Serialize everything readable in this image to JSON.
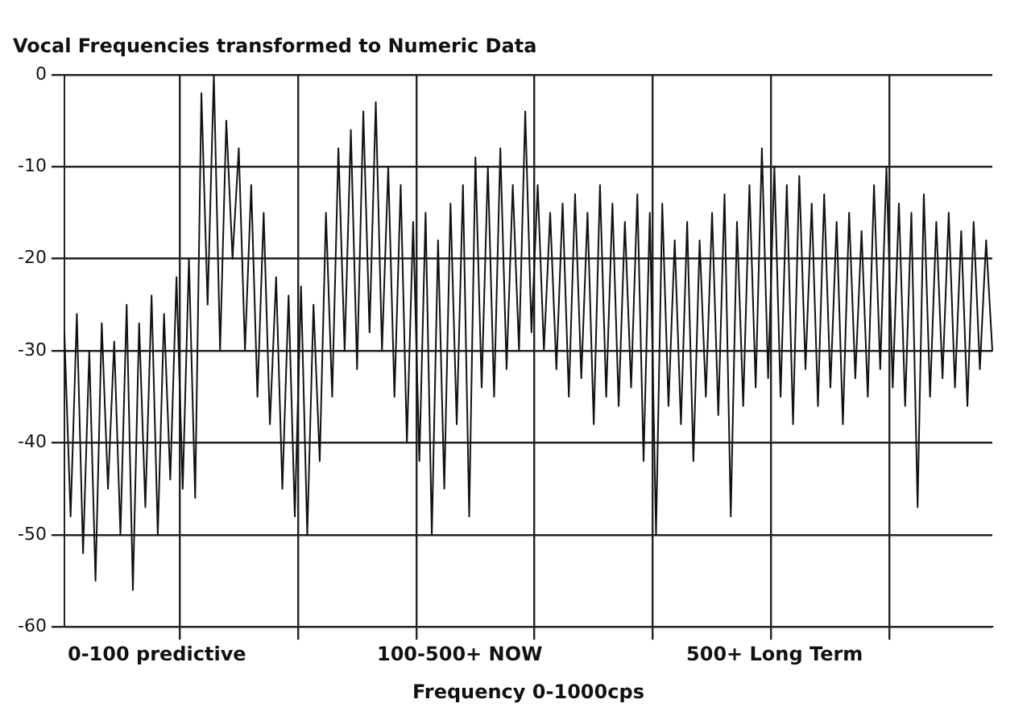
{
  "chart_data": {
    "type": "line",
    "title": "Vocal Frequencies transformed to Numeric Data",
    "xlabel": "Frequency 0-1000cps",
    "annotations": [
      "0-100 predictive",
      "100-500+ NOW",
      "500+ Long Term"
    ],
    "categories": [
      null,
      null,
      null,
      null,
      null,
      null,
      null,
      null,
      null,
      null,
      null,
      null,
      null,
      null,
      null,
      null,
      null,
      null,
      null,
      null,
      null,
      null,
      null,
      null,
      null,
      null,
      null,
      null,
      null,
      null,
      null,
      null,
      null,
      null,
      null,
      null,
      null,
      null,
      null,
      null,
      null,
      null,
      null,
      null,
      null,
      null,
      null,
      null,
      null,
      null,
      null,
      null,
      null,
      null,
      null,
      null,
      null,
      null,
      null,
      null,
      null,
      null,
      null,
      null,
      null,
      null,
      null,
      null,
      null,
      null,
      null,
      null,
      null,
      null,
      null,
      null,
      null,
      null,
      null,
      null,
      null,
      null,
      null,
      null,
      null,
      null,
      null,
      null,
      null,
      null,
      null,
      null,
      null,
      null,
      null,
      null,
      null,
      null,
      null,
      null,
      null,
      null,
      null,
      null,
      null,
      null,
      null,
      null,
      null,
      null,
      null,
      null,
      null,
      null,
      null,
      null,
      null,
      null,
      null,
      null,
      null,
      null,
      null,
      null,
      null,
      null,
      null,
      null,
      null,
      null,
      null,
      null,
      null,
      null,
      null,
      null,
      null,
      null,
      null,
      null,
      null,
      null,
      null,
      null,
      null,
      null,
      null,
      null,
      null,
      null
    ],
    "series": [
      {
        "color": "#111111",
        "values": [
          -28,
          -48,
          -26,
          -52,
          -30,
          -55,
          -27,
          -45,
          -29,
          -50,
          -25,
          -56,
          -27,
          -47,
          -24,
          -50,
          -26,
          -44,
          -22,
          -45,
          -20,
          -46,
          -2,
          -25,
          0,
          -30,
          -5,
          -20,
          -8,
          -30,
          -12,
          -35,
          -15,
          -38,
          -22,
          -45,
          -24,
          -48,
          -23,
          -50,
          -25,
          -42,
          -15,
          -35,
          -8,
          -30,
          -6,
          -32,
          -4,
          -28,
          -3,
          -30,
          -10,
          -35,
          -12,
          -40,
          -16,
          -42,
          -15,
          -50,
          -18,
          -45,
          -14,
          -38,
          -12,
          -48,
          -9,
          -34,
          -10,
          -35,
          -8,
          -32,
          -12,
          -30,
          -4,
          -28,
          -12,
          -30,
          -15,
          -32,
          -14,
          -35,
          -13,
          -33,
          -15,
          -38,
          -12,
          -35,
          -14,
          -36,
          -16,
          -34,
          -13,
          -42,
          -15,
          -50,
          -14,
          -36,
          -18,
          -38,
          -16,
          -42,
          -18,
          -35,
          -15,
          -37,
          -13,
          -48,
          -16,
          -36,
          -12,
          -34,
          -8,
          -33,
          -10,
          -35,
          -12,
          -38,
          -11,
          -32,
          -14,
          -36,
          -13,
          -34,
          -16,
          -38,
          -15,
          -33,
          -17,
          -35,
          -12,
          -32,
          -10,
          -34,
          -14,
          -36,
          -15,
          -47,
          -13,
          -35,
          -16,
          -33,
          -15,
          -34,
          -17,
          -36,
          -16,
          -32,
          -18,
          -30
        ]
      }
    ],
    "ylim": [
      -60,
      0
    ],
    "yticks": [
      0,
      -10,
      -20,
      -30,
      -40,
      -50,
      -60
    ],
    "grid": true,
    "legend": false,
    "marker": "none",
    "line_style": "solid",
    "tick_labels": "y"
  }
}
